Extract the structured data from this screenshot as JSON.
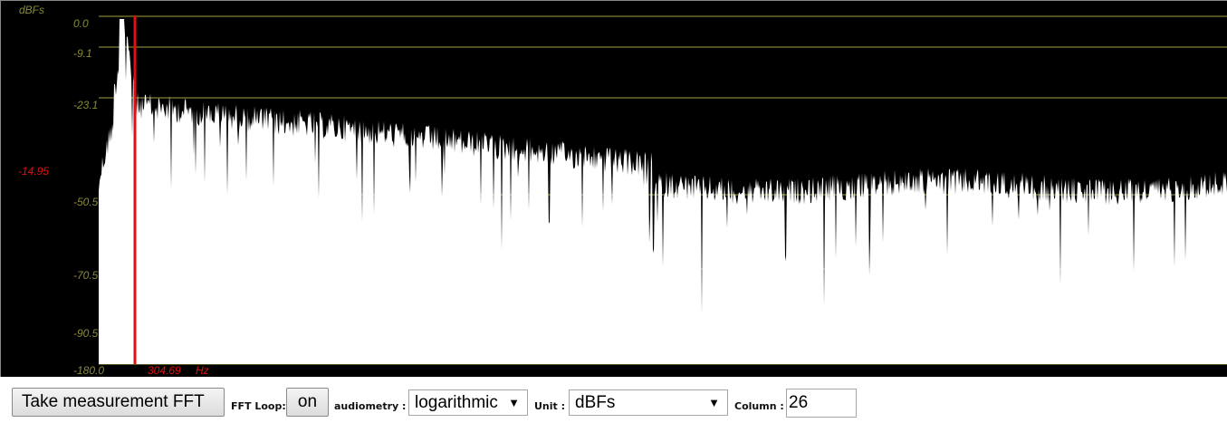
{
  "plot": {
    "unit_label": "dBFs",
    "y_ticks": [
      "0.0",
      "-9.1",
      "-23.1",
      "-50.5",
      "-70.5",
      "-90.5"
    ],
    "bottom_left_label": "-180.0",
    "cursor_value_label": "-14.95",
    "cursor_freq_label": "304.69",
    "cursor_freq_unit": "Hz",
    "colors": {
      "background": "#000000",
      "spectrum": "#ffffff",
      "gridline": "#6b6b2a",
      "cursor": "#e01010",
      "axis_text": "#8a8a3a"
    }
  },
  "toolbar": {
    "measure_button": "Take measurement FFT",
    "loop_label": "FFT Loop:",
    "loop_button": "on",
    "audiometry_label": "audiometry :",
    "audiometry_value": "logarithmic",
    "unit_label": "Unit :",
    "unit_value": "dBFs",
    "column_label": "Column :",
    "column_value": "26"
  }
}
